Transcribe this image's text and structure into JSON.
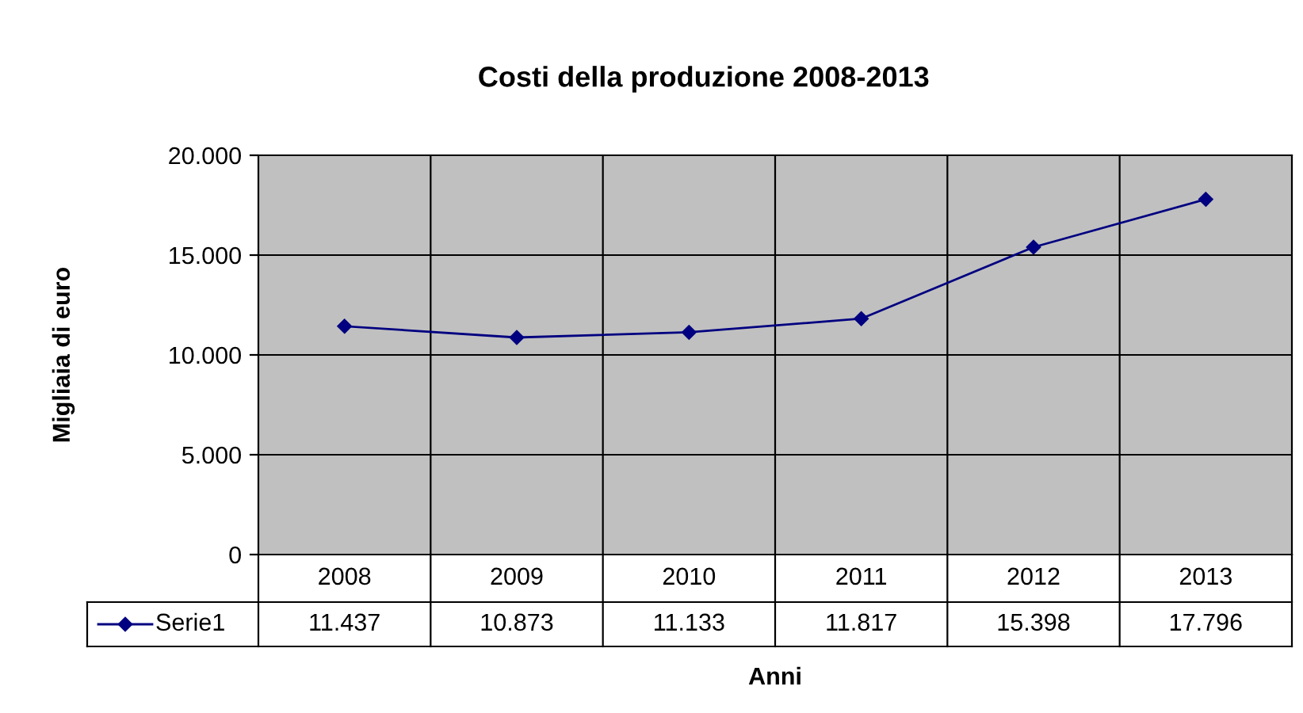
{
  "chart_data": {
    "type": "line",
    "title": "Costi della produzione 2008-2013",
    "xlabel": "Anni",
    "ylabel": "Migliaia di euro",
    "categories": [
      "2008",
      "2009",
      "2010",
      "2011",
      "2012",
      "2013"
    ],
    "series": [
      {
        "name": "Serie1",
        "color": "#000080",
        "values": [
          11437,
          10873,
          11133,
          11817,
          15398,
          17796
        ],
        "value_labels": [
          "11.437",
          "10.873",
          "11.133",
          "11.817",
          "15.398",
          "17.796"
        ]
      }
    ],
    "ylim": [
      0,
      20000
    ],
    "yticks": [
      0,
      {
        "value": 5000,
        "label": "5.000"
      },
      {
        "value": 10000,
        "label": "10.000"
      },
      {
        "value": 15000,
        "label": "15.000"
      },
      {
        "value": 20000,
        "label": "20.000"
      }
    ],
    "grid": true,
    "legend": "bottom left",
    "marker": "diamond",
    "line_style": "solid"
  }
}
